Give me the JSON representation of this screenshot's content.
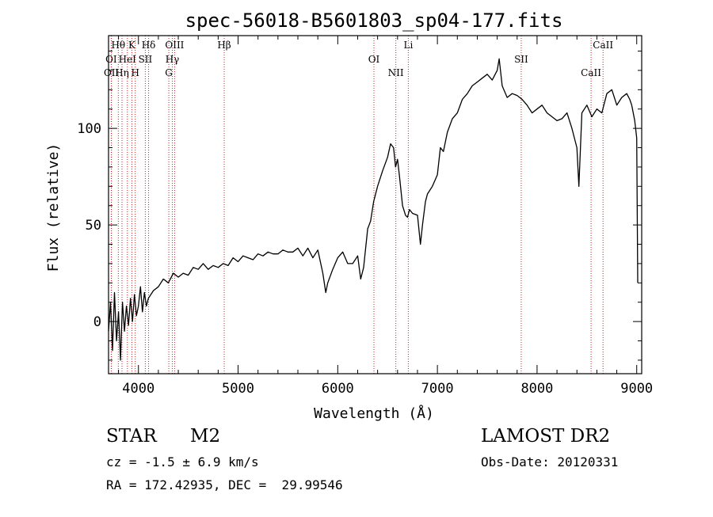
{
  "chart_data": {
    "type": "line",
    "title": "spec-56018-B5601803_sp04-177.fits",
    "xlabel": "Wavelength (Å)",
    "ylabel": "Flux (relative)",
    "xlim": [
      3700,
      9050
    ],
    "ylim": [
      -27,
      148
    ],
    "xticks": [
      4000,
      5000,
      6000,
      7000,
      8000,
      9000
    ],
    "yticks": [
      0,
      50,
      100
    ],
    "grid": false,
    "series": [
      {
        "x": [
          3700,
          3720,
          3740,
          3760,
          3780,
          3800,
          3820,
          3840,
          3860,
          3880,
          3900,
          3920,
          3940,
          3960,
          3980,
          4000,
          4020,
          4040,
          4060,
          4080,
          4100,
          4150,
          4200,
          4250,
          4300,
          4350,
          4400,
          4450,
          4500,
          4550,
          4600,
          4650,
          4700,
          4750,
          4800,
          4850,
          4900,
          4950,
          5000,
          5050,
          5100,
          5150,
          5200,
          5250,
          5300,
          5350,
          5400,
          5450,
          5500,
          5550,
          5600,
          5650,
          5700,
          5750,
          5800,
          5850,
          5880,
          5900,
          5950,
          6000,
          6050,
          6100,
          6150,
          6200,
          6230,
          6260,
          6300,
          6330,
          6360,
          6400,
          6450,
          6500,
          6530,
          6560,
          6580,
          6600,
          6620,
          6650,
          6680,
          6700,
          6720,
          6750,
          6800,
          6830,
          6850,
          6880,
          6900,
          6950,
          7000,
          7030,
          7060,
          7100,
          7150,
          7200,
          7250,
          7300,
          7350,
          7400,
          7450,
          7500,
          7550,
          7600,
          7620,
          7650,
          7700,
          7750,
          7800,
          7850,
          7900,
          7950,
          8000,
          8050,
          8100,
          8150,
          8200,
          8250,
          8300,
          8350,
          8400,
          8420,
          8450,
          8500,
          8550,
          8600,
          8650,
          8700,
          8750,
          8800,
          8850,
          8900,
          8930,
          8950,
          8980,
          9000,
          9010
        ],
        "values": [
          -5,
          10,
          -15,
          15,
          -10,
          5,
          -20,
          10,
          -5,
          8,
          -2,
          12,
          0,
          14,
          3,
          8,
          18,
          5,
          15,
          8,
          12,
          16,
          18,
          22,
          20,
          25,
          23,
          25,
          24,
          28,
          27,
          30,
          27,
          29,
          28,
          30,
          29,
          33,
          31,
          34,
          33,
          32,
          35,
          34,
          36,
          35,
          35,
          37,
          36,
          36,
          38,
          34,
          38,
          33,
          37,
          25,
          15,
          20,
          27,
          33,
          36,
          30,
          30,
          34,
          22,
          28,
          48,
          52,
          62,
          70,
          78,
          85,
          92,
          90,
          80,
          84,
          75,
          60,
          55,
          54,
          58,
          56,
          55,
          40,
          50,
          62,
          66,
          70,
          76,
          90,
          88,
          98,
          105,
          108,
          115,
          118,
          122,
          124,
          126,
          128,
          125,
          130,
          136,
          122,
          116,
          118,
          117,
          115,
          112,
          108,
          110,
          112,
          108,
          106,
          104,
          105,
          108,
          100,
          90,
          70,
          108,
          112,
          106,
          110,
          108,
          118,
          120,
          112,
          116,
          118,
          115,
          112,
          104,
          95,
          20
        ]
      }
    ],
    "line_markers": [
      {
        "label": "Hθ",
        "x": 3798
      },
      {
        "label": "OI",
        "x": 3727
      },
      {
        "label": "OII",
        "x": 3729
      },
      {
        "label": "K",
        "x": 3934
      },
      {
        "label": "HeI",
        "x": 3889
      },
      {
        "label": "Hη",
        "x": 3835
      },
      {
        "label": "Hδ",
        "x": 4102
      },
      {
        "label": "SII",
        "x": 4069
      },
      {
        "label": "H",
        "x": 3968
      },
      {
        "label": "OIII",
        "x": 4363
      },
      {
        "label": "Hγ",
        "x": 4340
      },
      {
        "label": "G",
        "x": 4305
      },
      {
        "label": "Hβ",
        "x": 4861
      },
      {
        "label": "OI",
        "x": 6363
      },
      {
        "label": "NII",
        "x": 6583
      },
      {
        "label": "Li",
        "x": 6708
      },
      {
        "label": "SII",
        "x": 7841
      },
      {
        "label": "CaII",
        "x": 8542
      },
      {
        "label": "CaII",
        "x": 8662
      }
    ]
  },
  "footer": {
    "object_class": "STAR",
    "subclass": "M2",
    "survey": "LAMOST DR2",
    "redshift": "cz = -1.5 ± 6.9 km/s",
    "obs_date": "Obs-Date: 20120331",
    "coordinates": "RA = 172.42935, DEC =  29.99546"
  },
  "colors": {
    "spectrum": "#000000",
    "marker_line": "#cc2222",
    "axis": "#000000",
    "background": "#ffffff"
  }
}
